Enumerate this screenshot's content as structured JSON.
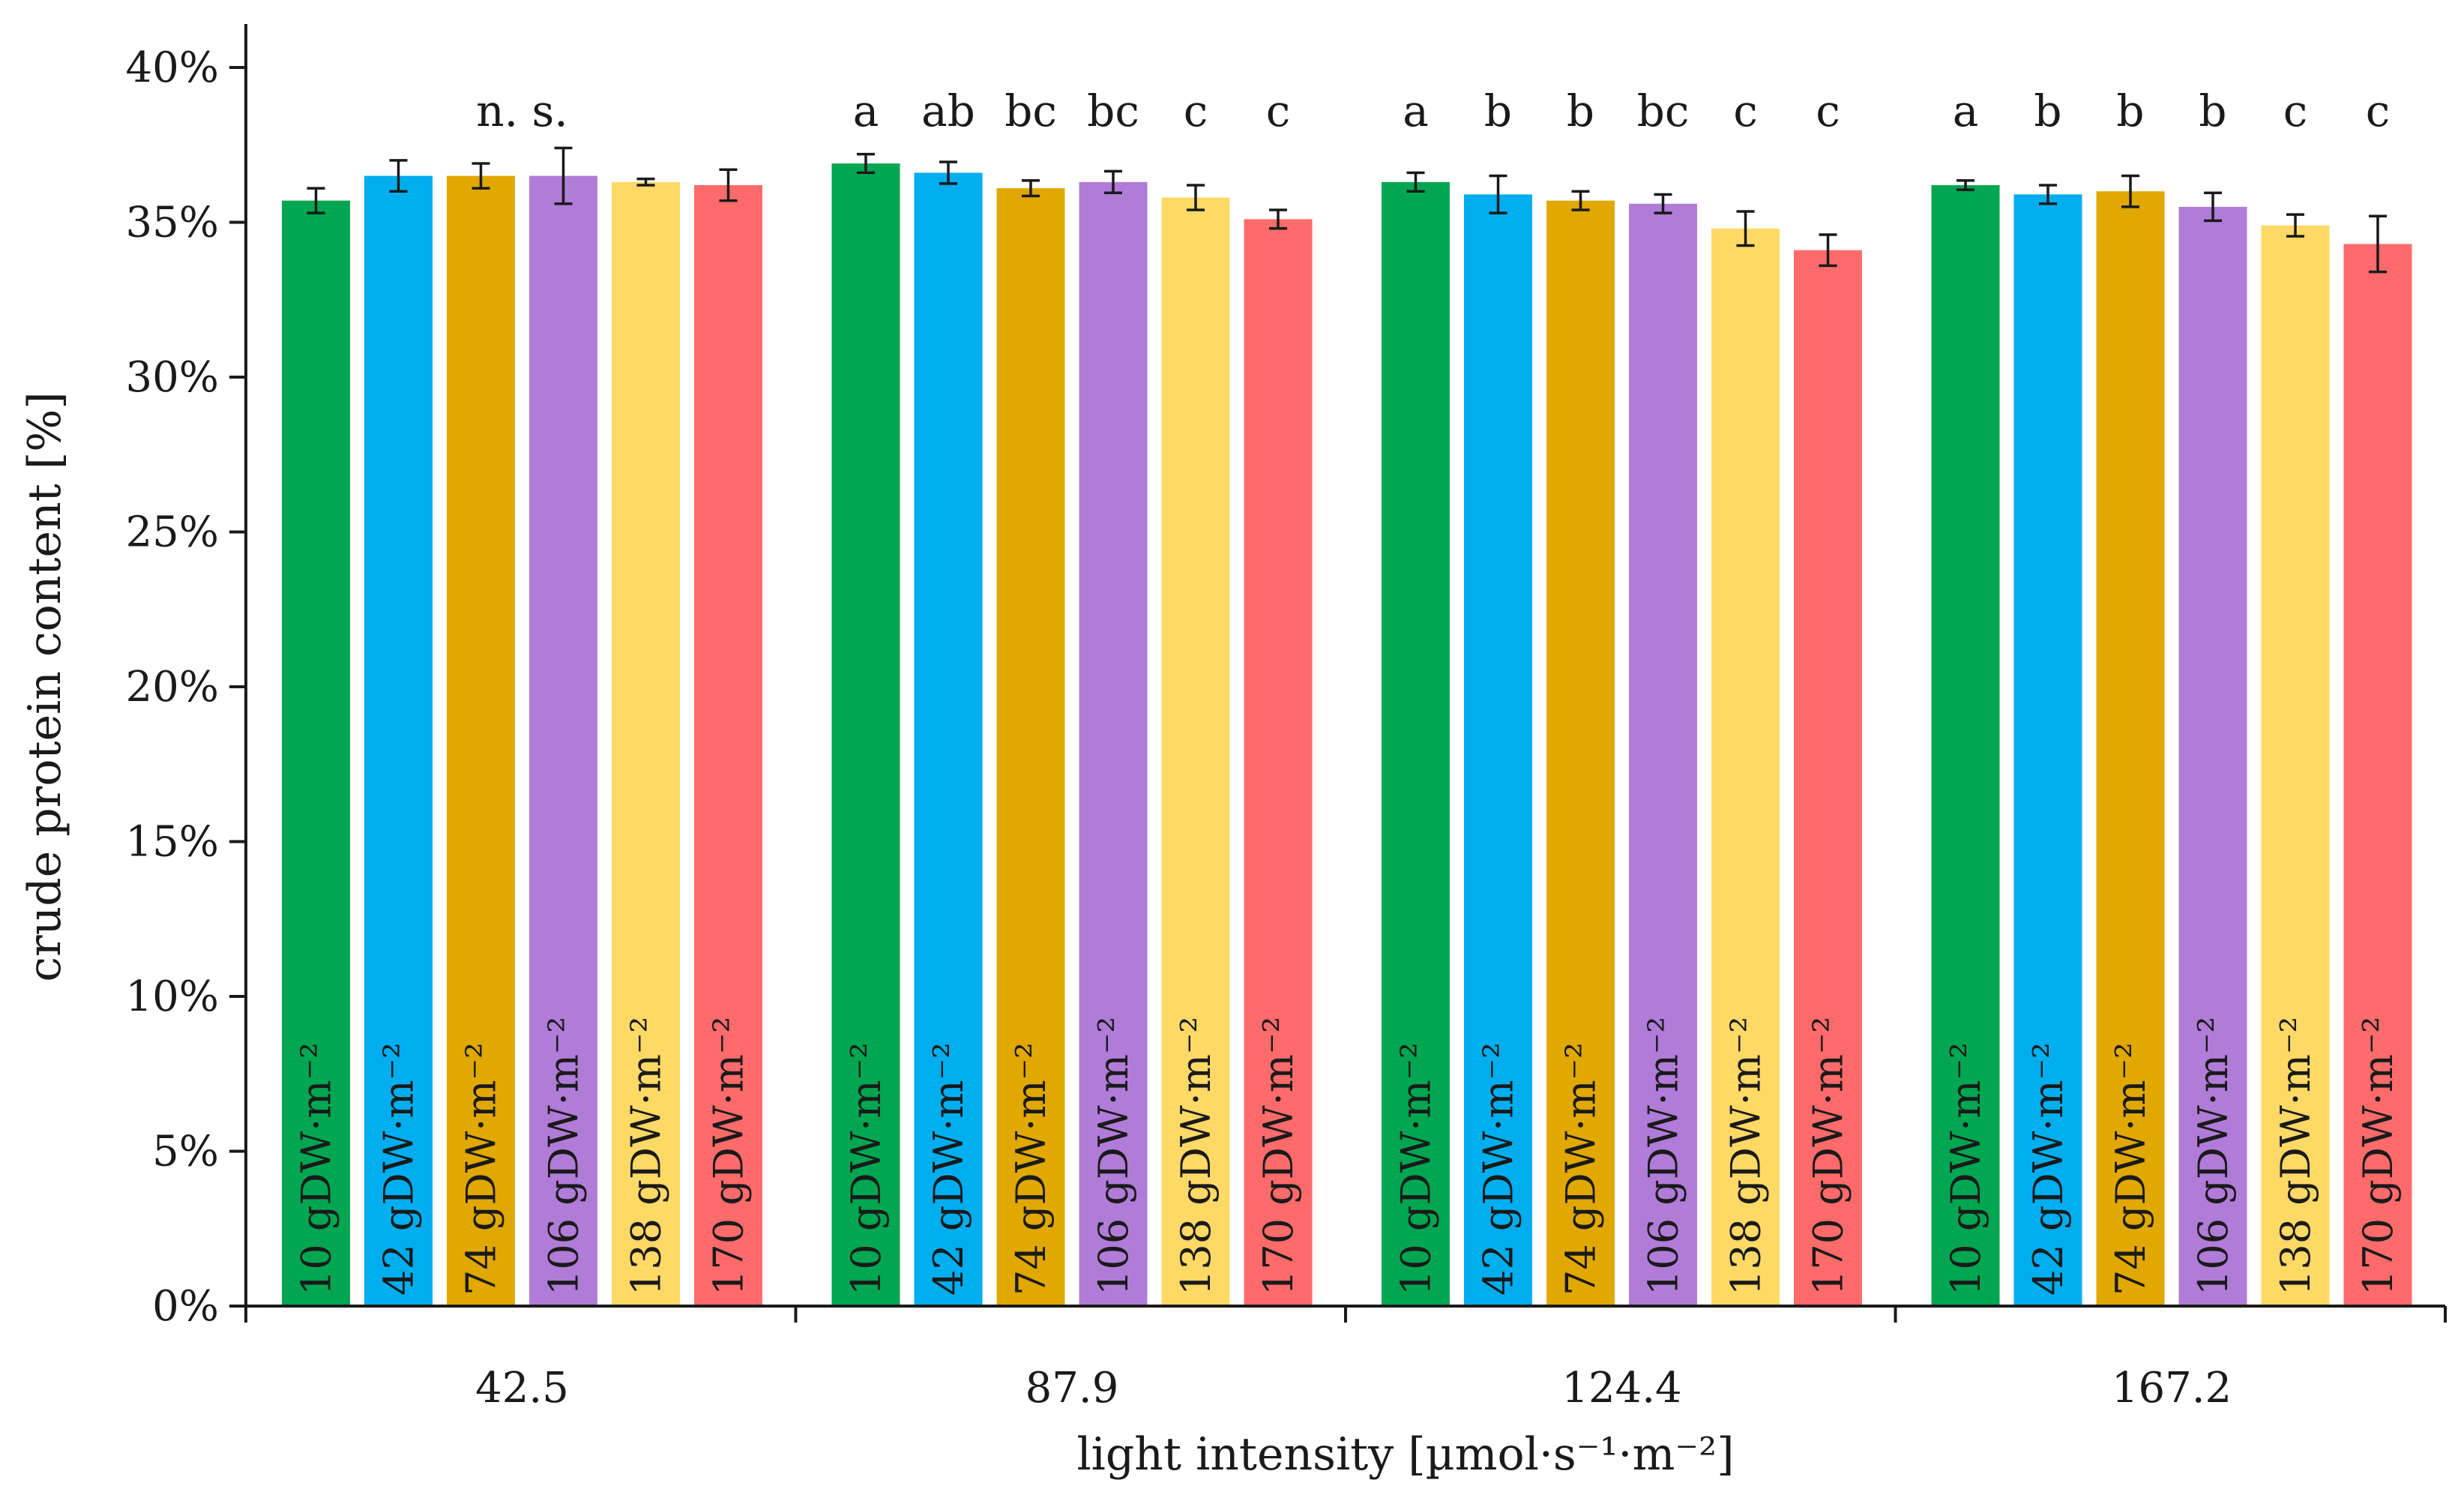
{
  "chart_data": {
    "type": "bar",
    "xlabel": "light intensity [µmol·s⁻¹·m⁻²]",
    "ylabel": "crude protein content [%]",
    "ylim": [
      0,
      40
    ],
    "y_ticks": [
      "0%",
      "5%",
      "10%",
      "15%",
      "20%",
      "25%",
      "30%",
      "35%",
      "40%"
    ],
    "y_tick_values": [
      0,
      5,
      10,
      15,
      20,
      25,
      30,
      35,
      40
    ],
    "grid": false,
    "legend": "none",
    "categories": [
      "42.5",
      "87.9",
      "124.4",
      "167.2"
    ],
    "series": [
      {
        "name": "10 gDW·m⁻²",
        "color": "#00A651",
        "values": [
          35.7,
          36.9,
          36.3,
          36.2
        ],
        "errors": [
          0.4,
          0.3,
          0.3,
          0.15
        ]
      },
      {
        "name": "42 gDW·m⁻²",
        "color": "#00AEEF",
        "values": [
          36.5,
          36.6,
          35.9,
          35.9
        ],
        "errors": [
          0.5,
          0.35,
          0.6,
          0.3
        ]
      },
      {
        "name": "74 gDW·m⁻²",
        "color": "#E0A800",
        "values": [
          36.5,
          36.1,
          35.7,
          36.0
        ],
        "errors": [
          0.4,
          0.25,
          0.3,
          0.5
        ]
      },
      {
        "name": "106 gDW·m⁻²",
        "color": "#B07CD8",
        "values": [
          36.5,
          36.3,
          35.6,
          35.5
        ],
        "errors": [
          0.9,
          0.35,
          0.3,
          0.45
        ]
      },
      {
        "name": "138 gDW·m⁻²",
        "color": "#FFD966",
        "values": [
          36.3,
          35.8,
          34.8,
          34.9
        ],
        "errors": [
          0.1,
          0.4,
          0.55,
          0.35
        ]
      },
      {
        "name": "170 gDW·m⁻²",
        "color": "#FF6B6B",
        "values": [
          36.2,
          35.1,
          34.1,
          34.3
        ],
        "errors": [
          0.5,
          0.3,
          0.5,
          0.9
        ]
      }
    ],
    "significance_labels": [
      {
        "category": 0,
        "labels": [],
        "group_label": "n. s."
      },
      {
        "category": 1,
        "labels": [
          "a",
          "ab",
          "bc",
          "bc",
          "c",
          "c"
        ]
      },
      {
        "category": 2,
        "labels": [
          "a",
          "b",
          "b",
          "bc",
          "c",
          "c"
        ]
      },
      {
        "category": 3,
        "labels": [
          "a",
          "b",
          "b",
          "b",
          "c",
          "c"
        ]
      }
    ]
  }
}
